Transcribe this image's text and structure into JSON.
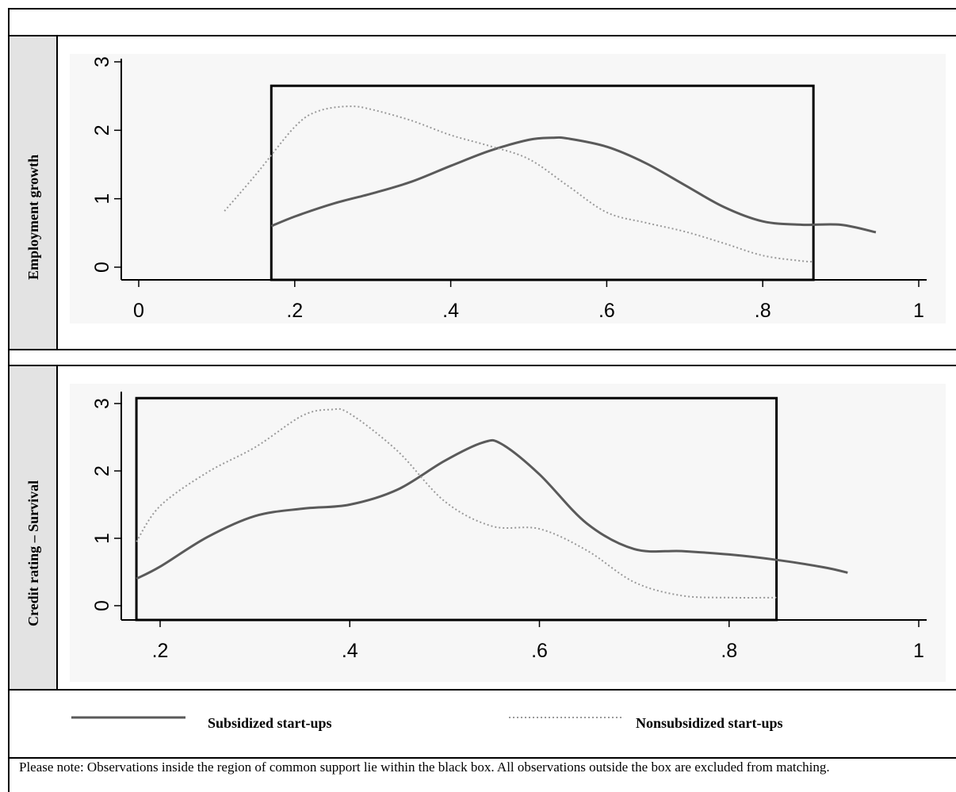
{
  "chart_data": [
    {
      "type": "line",
      "ylabel": "Employment  growth",
      "xlabel": "",
      "xlim": [
        0,
        1
      ],
      "ylim": [
        0,
        3
      ],
      "xticks": [
        0,
        0.2,
        0.4,
        0.6,
        0.8,
        1
      ],
      "xtick_labels": [
        "0",
        ".2",
        ".4",
        ".6",
        ".8",
        "1"
      ],
      "yticks": [
        0,
        1,
        2,
        3
      ],
      "ytick_labels": [
        "0",
        "1",
        "2",
        "3"
      ],
      "common_support_box": {
        "x_min": 0.17,
        "x_max": 0.865,
        "y_top": 2.65
      },
      "series": [
        {
          "name": "Subsidized start-ups",
          "style": "solid",
          "x": [
            0.17,
            0.2,
            0.25,
            0.3,
            0.35,
            0.4,
            0.45,
            0.5,
            0.53,
            0.55,
            0.6,
            0.65,
            0.7,
            0.75,
            0.8,
            0.85,
            0.9,
            0.945
          ],
          "y": [
            0.6,
            0.74,
            0.93,
            1.08,
            1.25,
            1.48,
            1.7,
            1.86,
            1.89,
            1.88,
            1.76,
            1.52,
            1.2,
            0.88,
            0.67,
            0.62,
            0.62,
            0.51
          ]
        },
        {
          "name": "Nonsubsidized start-ups",
          "style": "dotted",
          "x": [
            0.11,
            0.15,
            0.2,
            0.23,
            0.27,
            0.3,
            0.35,
            0.4,
            0.45,
            0.5,
            0.55,
            0.6,
            0.65,
            0.7,
            0.75,
            0.8,
            0.85,
            0.865
          ],
          "y": [
            0.82,
            1.35,
            2.05,
            2.28,
            2.35,
            2.3,
            2.14,
            1.93,
            1.77,
            1.58,
            1.19,
            0.8,
            0.65,
            0.52,
            0.35,
            0.17,
            0.09,
            0.08
          ]
        }
      ]
    },
    {
      "type": "line",
      "ylabel": "Credit rating – Survival",
      "xlabel": "",
      "xlim": [
        0.16,
        1
      ],
      "ylim": [
        0,
        3
      ],
      "xticks": [
        0.2,
        0.4,
        0.6,
        0.8,
        1
      ],
      "xtick_labels": [
        ".2",
        ".4",
        ".6",
        ".8",
        "1"
      ],
      "yticks": [
        0,
        1,
        2,
        3
      ],
      "ytick_labels": [
        "0",
        "1",
        "2",
        "3"
      ],
      "common_support_box": {
        "x_min": 0.175,
        "x_max": 0.85,
        "y_top": 3.08
      },
      "series": [
        {
          "name": "Subsidized start-ups",
          "style": "solid",
          "x": [
            0.175,
            0.2,
            0.25,
            0.3,
            0.35,
            0.4,
            0.45,
            0.5,
            0.54,
            0.56,
            0.6,
            0.65,
            0.7,
            0.75,
            0.8,
            0.85,
            0.9,
            0.925
          ],
          "y": [
            0.4,
            0.58,
            1.02,
            1.33,
            1.44,
            1.5,
            1.72,
            2.15,
            2.42,
            2.4,
            1.95,
            1.22,
            0.84,
            0.81,
            0.76,
            0.68,
            0.57,
            0.49
          ]
        },
        {
          "name": "Nonsubsidized start-ups",
          "style": "dotted",
          "x": [
            0.175,
            0.2,
            0.25,
            0.3,
            0.35,
            0.38,
            0.4,
            0.45,
            0.5,
            0.55,
            0.6,
            0.65,
            0.7,
            0.75,
            0.8,
            0.85
          ],
          "y": [
            0.95,
            1.48,
            1.98,
            2.35,
            2.82,
            2.91,
            2.85,
            2.3,
            1.55,
            1.18,
            1.14,
            0.82,
            0.35,
            0.15,
            0.12,
            0.12
          ]
        }
      ]
    }
  ],
  "legend": {
    "subsidized": "Subsidized start-ups",
    "nonsubsidized": "Nonsubsidized start-ups"
  },
  "note": "Please note: Observations inside the region of common support lie within the black box. All observations outside the box are excluded from matching.",
  "colors": {
    "solid_line": "#5a5a5a",
    "dotted_line": "#9a9a9a",
    "plot_background": "#f7f7f7",
    "label_background": "#e3e3e3"
  }
}
